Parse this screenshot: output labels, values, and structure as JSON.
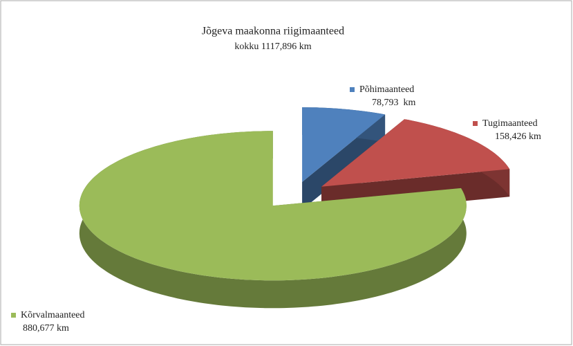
{
  "chart_data": {
    "type": "pie",
    "title": "Jõgeva maakonna riigimaanteed",
    "subtitle": "kokku 1117,896 km",
    "categories": [
      "Põhimaanteed",
      "Tugimaanteed",
      "Kõrvalmaanteed"
    ],
    "values": [
      78.793,
      158.426,
      880.677
    ],
    "value_labels": [
      "78,793  km",
      "158,426 km",
      "880,677 km"
    ],
    "colors": [
      "#4f81bd",
      "#c0504d",
      "#9bbb59"
    ]
  }
}
